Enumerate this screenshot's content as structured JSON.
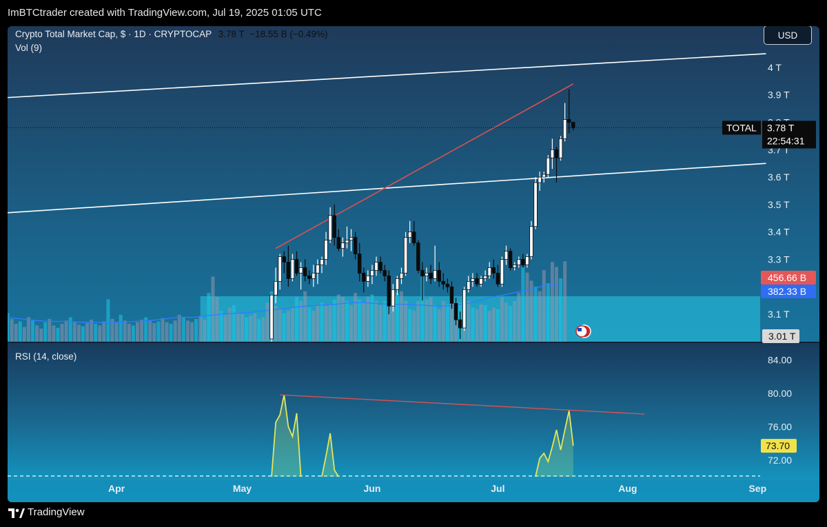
{
  "header": {
    "attribution": "ImBTCtrader created with TradingView.com, Jul 19, 2025 01:05 UTC"
  },
  "legend": {
    "symbol": "Crypto Total Market Cap, $ · 1D · CRYPTOCAP",
    "last": "3.78 T",
    "change": "−18.55 B (−0.49%)",
    "vol": "Vol (9)",
    "rsi": "RSI (14, close)"
  },
  "currency_button": "USD",
  "footer": {
    "brand": "TradingView"
  },
  "colors": {
    "bull": "#ffffff",
    "bear": "#0b0b0b",
    "resistance": "#d9534f",
    "channel": "#ffffff",
    "rsi": "#e6e65a",
    "vol_ma": "#2f7dff",
    "volume_bar": "rgba(150,150,170,0.55)",
    "volume_bar_alt": "rgba(30,200,230,0.55)",
    "volume_zone": "rgba(40,200,230,0.55)"
  },
  "chart_data": [
    {
      "type": "candlestick",
      "title": "Crypto Total Market Cap, $ · 1D · CRYPTOCAP",
      "ylim": [
        3.0,
        4.1
      ],
      "y_ticks": [
        "4 T",
        "3.9 T",
        "3.8 T",
        "3.7 T",
        "3.6 T",
        "3.5 T",
        "3.4 T",
        "3.3 T",
        "3.1 T"
      ],
      "x_ticks": [
        "Apr",
        "May",
        "Jun",
        "Jul",
        "Aug",
        "Sep"
      ],
      "x_range": [
        "2025-03-06",
        "2025-09-03"
      ],
      "price_label": {
        "tag": "TOTAL",
        "value": "3.78 T",
        "countdown": "22:54:31",
        "last": 3.78
      },
      "scale_labels": {
        "volume": "456.66 B",
        "volume_ma": "382.33 B",
        "bottom": "3.01 T"
      },
      "candles": [
        {
          "d": "2025-05-08",
          "o": 3.01,
          "h": 3.17,
          "l": 3.0,
          "c": 3.17
        },
        {
          "d": "2025-05-09",
          "o": 3.17,
          "h": 3.27,
          "l": 3.14,
          "c": 3.22
        },
        {
          "d": "2025-05-10",
          "o": 3.22,
          "h": 3.32,
          "l": 3.19,
          "c": 3.31
        },
        {
          "d": "2025-05-11",
          "o": 3.31,
          "h": 3.33,
          "l": 3.25,
          "c": 3.29
        },
        {
          "d": "2025-05-12",
          "o": 3.29,
          "h": 3.35,
          "l": 3.2,
          "c": 3.23
        },
        {
          "d": "2025-05-13",
          "o": 3.23,
          "h": 3.32,
          "l": 3.22,
          "c": 3.3
        },
        {
          "d": "2025-05-14",
          "o": 3.3,
          "h": 3.33,
          "l": 3.24,
          "c": 3.25
        },
        {
          "d": "2025-05-15",
          "o": 3.25,
          "h": 3.29,
          "l": 3.19,
          "c": 3.27
        },
        {
          "d": "2025-05-16",
          "o": 3.27,
          "h": 3.3,
          "l": 3.22,
          "c": 3.24
        },
        {
          "d": "2025-05-17",
          "o": 3.24,
          "h": 3.26,
          "l": 3.21,
          "c": 3.23
        },
        {
          "d": "2025-05-18",
          "o": 3.23,
          "h": 3.28,
          "l": 3.2,
          "c": 3.25
        },
        {
          "d": "2025-05-19",
          "o": 3.25,
          "h": 3.3,
          "l": 3.21,
          "c": 3.28
        },
        {
          "d": "2025-05-20",
          "o": 3.28,
          "h": 3.31,
          "l": 3.25,
          "c": 3.3
        },
        {
          "d": "2025-05-21",
          "o": 3.3,
          "h": 3.4,
          "l": 3.28,
          "c": 3.37
        },
        {
          "d": "2025-05-22",
          "o": 3.37,
          "h": 3.49,
          "l": 3.36,
          "c": 3.46
        },
        {
          "d": "2025-05-23",
          "o": 3.46,
          "h": 3.5,
          "l": 3.35,
          "c": 3.38
        },
        {
          "d": "2025-05-24",
          "o": 3.38,
          "h": 3.41,
          "l": 3.33,
          "c": 3.34
        },
        {
          "d": "2025-05-25",
          "o": 3.34,
          "h": 3.38,
          "l": 3.31,
          "c": 3.36
        },
        {
          "d": "2025-05-26",
          "o": 3.36,
          "h": 3.42,
          "l": 3.34,
          "c": 3.37
        },
        {
          "d": "2025-05-27",
          "o": 3.37,
          "h": 3.41,
          "l": 3.33,
          "c": 3.38
        },
        {
          "d": "2025-05-28",
          "o": 3.38,
          "h": 3.4,
          "l": 3.3,
          "c": 3.32
        },
        {
          "d": "2025-05-29",
          "o": 3.32,
          "h": 3.36,
          "l": 3.22,
          "c": 3.25
        },
        {
          "d": "2025-05-30",
          "o": 3.25,
          "h": 3.27,
          "l": 3.18,
          "c": 3.22
        },
        {
          "d": "2025-05-31",
          "o": 3.22,
          "h": 3.26,
          "l": 3.2,
          "c": 3.24
        },
        {
          "d": "2025-06-01",
          "o": 3.24,
          "h": 3.28,
          "l": 3.21,
          "c": 3.26
        },
        {
          "d": "2025-06-02",
          "o": 3.26,
          "h": 3.31,
          "l": 3.24,
          "c": 3.29
        },
        {
          "d": "2025-06-03",
          "o": 3.29,
          "h": 3.31,
          "l": 3.25,
          "c": 3.26
        },
        {
          "d": "2025-06-04",
          "o": 3.26,
          "h": 3.28,
          "l": 3.22,
          "c": 3.24
        },
        {
          "d": "2025-06-05",
          "o": 3.24,
          "h": 3.26,
          "l": 3.1,
          "c": 3.13
        },
        {
          "d": "2025-06-06",
          "o": 3.13,
          "h": 3.21,
          "l": 3.11,
          "c": 3.19
        },
        {
          "d": "2025-06-07",
          "o": 3.19,
          "h": 3.24,
          "l": 3.17,
          "c": 3.23
        },
        {
          "d": "2025-06-08",
          "o": 3.23,
          "h": 3.27,
          "l": 3.21,
          "c": 3.25
        },
        {
          "d": "2025-06-09",
          "o": 3.25,
          "h": 3.4,
          "l": 3.24,
          "c": 3.38
        },
        {
          "d": "2025-06-10",
          "o": 3.38,
          "h": 3.44,
          "l": 3.36,
          "c": 3.4
        },
        {
          "d": "2025-06-11",
          "o": 3.4,
          "h": 3.44,
          "l": 3.35,
          "c": 3.36
        },
        {
          "d": "2025-06-12",
          "o": 3.36,
          "h": 3.37,
          "l": 3.25,
          "c": 3.26
        },
        {
          "d": "2025-06-13",
          "o": 3.26,
          "h": 3.29,
          "l": 3.15,
          "c": 3.24
        },
        {
          "d": "2025-06-14",
          "o": 3.24,
          "h": 3.27,
          "l": 3.22,
          "c": 3.25
        },
        {
          "d": "2025-06-15",
          "o": 3.25,
          "h": 3.28,
          "l": 3.21,
          "c": 3.23
        },
        {
          "d": "2025-06-16",
          "o": 3.23,
          "h": 3.35,
          "l": 3.22,
          "c": 3.26
        },
        {
          "d": "2025-06-17",
          "o": 3.26,
          "h": 3.29,
          "l": 3.2,
          "c": 3.22
        },
        {
          "d": "2025-06-18",
          "o": 3.22,
          "h": 3.25,
          "l": 3.19,
          "c": 3.21
        },
        {
          "d": "2025-06-19",
          "o": 3.21,
          "h": 3.23,
          "l": 3.18,
          "c": 3.2
        },
        {
          "d": "2025-06-20",
          "o": 3.2,
          "h": 3.22,
          "l": 3.12,
          "c": 3.14
        },
        {
          "d": "2025-06-21",
          "o": 3.14,
          "h": 3.16,
          "l": 3.06,
          "c": 3.08
        },
        {
          "d": "2025-06-22",
          "o": 3.08,
          "h": 3.11,
          "l": 3.01,
          "c": 3.05
        },
        {
          "d": "2025-06-23",
          "o": 3.05,
          "h": 3.2,
          "l": 3.04,
          "c": 3.19
        },
        {
          "d": "2025-06-24",
          "o": 3.19,
          "h": 3.24,
          "l": 3.18,
          "c": 3.22
        },
        {
          "d": "2025-06-25",
          "o": 3.22,
          "h": 3.25,
          "l": 3.2,
          "c": 3.23
        },
        {
          "d": "2025-06-26",
          "o": 3.23,
          "h": 3.25,
          "l": 3.2,
          "c": 3.21
        },
        {
          "d": "2025-06-27",
          "o": 3.21,
          "h": 3.24,
          "l": 3.2,
          "c": 3.23
        },
        {
          "d": "2025-06-28",
          "o": 3.23,
          "h": 3.26,
          "l": 3.22,
          "c": 3.24
        },
        {
          "d": "2025-06-29",
          "o": 3.24,
          "h": 3.29,
          "l": 3.23,
          "c": 3.27
        },
        {
          "d": "2025-06-30",
          "o": 3.27,
          "h": 3.3,
          "l": 3.23,
          "c": 3.25
        },
        {
          "d": "2025-07-01",
          "o": 3.25,
          "h": 3.28,
          "l": 3.2,
          "c": 3.21
        },
        {
          "d": "2025-07-02",
          "o": 3.21,
          "h": 3.31,
          "l": 3.2,
          "c": 3.3
        },
        {
          "d": "2025-07-03",
          "o": 3.3,
          "h": 3.35,
          "l": 3.28,
          "c": 3.33
        },
        {
          "d": "2025-07-04",
          "o": 3.33,
          "h": 3.34,
          "l": 3.26,
          "c": 3.27
        },
        {
          "d": "2025-07-05",
          "o": 3.27,
          "h": 3.29,
          "l": 3.26,
          "c": 3.28
        },
        {
          "d": "2025-07-06",
          "o": 3.28,
          "h": 3.31,
          "l": 3.27,
          "c": 3.3
        },
        {
          "d": "2025-07-07",
          "o": 3.3,
          "h": 3.32,
          "l": 3.27,
          "c": 3.28
        },
        {
          "d": "2025-07-08",
          "o": 3.28,
          "h": 3.32,
          "l": 3.27,
          "c": 3.31
        },
        {
          "d": "2025-07-09",
          "o": 3.31,
          "h": 3.44,
          "l": 3.3,
          "c": 3.42
        },
        {
          "d": "2025-07-10",
          "o": 3.42,
          "h": 3.6,
          "l": 3.41,
          "c": 3.58
        },
        {
          "d": "2025-07-11",
          "o": 3.58,
          "h": 3.62,
          "l": 3.55,
          "c": 3.6
        },
        {
          "d": "2025-07-12",
          "o": 3.6,
          "h": 3.62,
          "l": 3.58,
          "c": 3.61
        },
        {
          "d": "2025-07-13",
          "o": 3.61,
          "h": 3.68,
          "l": 3.6,
          "c": 3.67
        },
        {
          "d": "2025-07-14",
          "o": 3.67,
          "h": 3.74,
          "l": 3.63,
          "c": 3.7
        },
        {
          "d": "2025-07-15",
          "o": 3.7,
          "h": 3.71,
          "l": 3.58,
          "c": 3.67
        },
        {
          "d": "2025-07-16",
          "o": 3.67,
          "h": 3.75,
          "l": 3.66,
          "c": 3.74
        },
        {
          "d": "2025-07-17",
          "o": 3.74,
          "h": 3.87,
          "l": 3.73,
          "c": 3.81
        },
        {
          "d": "2025-07-18",
          "o": 3.81,
          "h": 3.92,
          "l": 3.76,
          "c": 3.8
        },
        {
          "d": "2025-07-19",
          "o": 3.8,
          "h": 3.8,
          "l": 3.77,
          "c": 3.78
        }
      ],
      "trendlines": [
        {
          "name": "channel-upper",
          "from": {
            "d": "2025-03-06",
            "v": 3.89
          },
          "to": {
            "d": "2025-09-03",
            "v": 4.05
          }
        },
        {
          "name": "channel-lower",
          "from": {
            "d": "2025-03-06",
            "v": 3.47
          },
          "to": {
            "d": "2025-09-03",
            "v": 3.65
          }
        },
        {
          "name": "resistance",
          "from": {
            "d": "2025-05-09",
            "v": 3.34
          },
          "to": {
            "d": "2025-07-19",
            "v": 3.94
          }
        }
      ]
    },
    {
      "type": "bar",
      "title": "Vol (9)",
      "note": "volume bars drawn as relative heights 0-1 of the pane; MA line overlays",
      "bars_start": "2025-03-06",
      "bars": [
        0.35,
        0.28,
        0.22,
        0.25,
        0.18,
        0.3,
        0.26,
        0.2,
        0.16,
        0.24,
        0.28,
        0.2,
        0.17,
        0.22,
        0.26,
        0.3,
        0.24,
        0.21,
        0.19,
        0.23,
        0.27,
        0.22,
        0.2,
        0.25,
        0.52,
        0.28,
        0.24,
        0.33,
        0.26,
        0.22,
        0.2,
        0.24,
        0.27,
        0.3,
        0.26,
        0.23,
        0.25,
        0.29,
        0.24,
        0.22,
        0.26,
        0.33,
        0.3,
        0.26,
        0.24,
        0.28,
        0.31,
        0.27,
        0.6,
        0.8,
        0.55,
        0.38,
        0.33,
        0.42,
        0.45,
        0.36,
        0.34,
        0.3,
        0.32,
        0.35,
        0.28,
        0.3,
        0.48,
        0.62,
        0.44,
        0.4,
        0.35,
        0.38,
        0.42,
        0.55,
        0.5,
        0.62,
        0.42,
        0.38,
        0.45,
        0.48,
        0.44,
        0.46,
        0.52,
        0.58,
        0.55,
        0.5,
        0.45,
        0.6,
        0.52,
        0.48,
        0.55,
        0.58,
        0.5,
        0.45,
        0.5,
        0.46,
        0.55,
        0.6,
        0.62,
        0.5,
        0.4,
        0.38,
        0.5,
        0.8,
        0.52,
        0.55,
        0.45,
        0.4,
        0.5,
        0.46,
        0.52,
        0.5,
        0.48,
        0.44,
        0.5,
        0.42,
        0.4,
        0.46,
        0.45,
        0.38,
        0.42,
        0.4,
        0.55,
        0.48,
        0.44,
        0.5,
        0.6,
        0.92,
        0.85,
        0.75,
        0.68,
        0.62,
        0.88,
        0.72,
        0.98,
        0.92,
        0.78,
        0.99
      ],
      "ma": [
        0.3,
        0.28,
        0.26,
        0.25,
        0.25,
        0.24,
        0.24,
        0.23,
        0.24,
        0.25,
        0.26,
        0.28,
        0.3,
        0.3,
        0.32,
        0.34,
        0.35,
        0.36,
        0.38,
        0.4,
        0.42,
        0.44,
        0.45,
        0.46,
        0.48,
        0.48,
        0.47,
        0.46,
        0.46,
        0.45,
        0.44,
        0.44,
        0.46,
        0.5,
        0.55,
        0.58,
        0.62,
        0.66,
        0.7,
        0.72
      ]
    },
    {
      "type": "line",
      "title": "RSI (14, close)",
      "ylim": [
        70.0,
        86.0
      ],
      "y_ticks": [
        "84.00",
        "80.00",
        "76.00",
        "72.00"
      ],
      "last_label": "73.70",
      "last": 73.7,
      "overbought": 70,
      "x": [
        "2025-05-08",
        "2025-05-09",
        "2025-05-10",
        "2025-05-11",
        "2025-05-12",
        "2025-05-13",
        "2025-05-14",
        "2025-05-15",
        "2025-05-20",
        "2025-05-21",
        "2025-05-22",
        "2025-05-23",
        "2025-05-24",
        "2025-07-10",
        "2025-07-11",
        "2025-07-12",
        "2025-07-13",
        "2025-07-14",
        "2025-07-15",
        "2025-07-16",
        "2025-07-17",
        "2025-07-18",
        "2025-07-19"
      ],
      "values": [
        70.0,
        76.5,
        77.4,
        79.8,
        76.0,
        74.8,
        77.6,
        70.0,
        70.0,
        72.5,
        75.2,
        70.8,
        70.0,
        70.0,
        72.2,
        72.8,
        71.8,
        73.6,
        75.6,
        73.2,
        75.6,
        77.9,
        73.7
      ],
      "trendline": {
        "from": {
          "d": "2025-05-10",
          "v": 79.8
        },
        "to": {
          "d": "2025-08-05",
          "v": 77.5
        }
      }
    }
  ]
}
